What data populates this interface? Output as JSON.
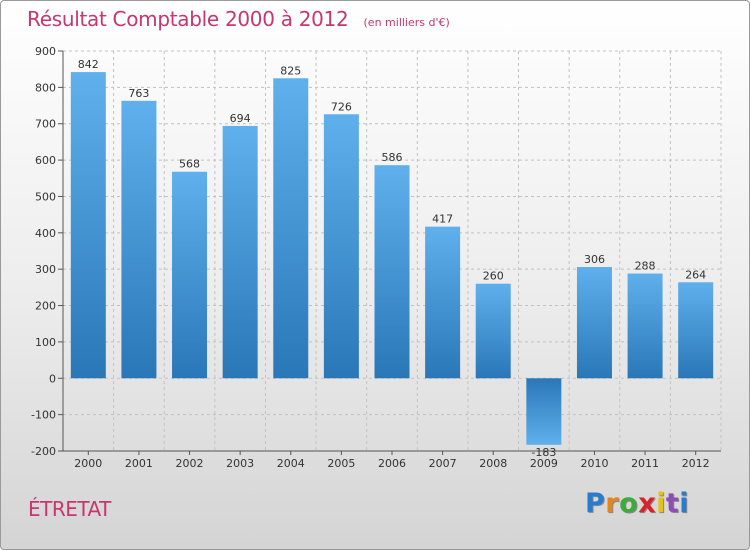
{
  "chart_data": {
    "type": "bar",
    "title": "Résultat Comptable 2000 à 2012",
    "subtitle": "(en milliers d'€)",
    "categories": [
      "2000",
      "2001",
      "2002",
      "2003",
      "2004",
      "2005",
      "2006",
      "2007",
      "2008",
      "2009",
      "2010",
      "2011",
      "2012"
    ],
    "values": [
      842,
      763,
      568,
      694,
      825,
      726,
      586,
      417,
      260,
      -183,
      306,
      288,
      264
    ],
    "ylim": [
      -200,
      900
    ],
    "yticks": [
      -200,
      -100,
      0,
      100,
      200,
      300,
      400,
      500,
      600,
      700,
      800,
      900
    ],
    "ytick_labels": [
      "-200",
      "-100",
      "0",
      "100",
      "200",
      "300",
      "400",
      "500",
      "600",
      "700",
      "800",
      "900"
    ],
    "xlabel": "",
    "ylabel": "",
    "grid": true
  },
  "location": "ÉTRETAT",
  "logo": {
    "text": "Proxiti"
  },
  "colors": {
    "accent": "#c8366f",
    "bar_light": "#5fb0ec",
    "bar_dark": "#2a77b8"
  }
}
